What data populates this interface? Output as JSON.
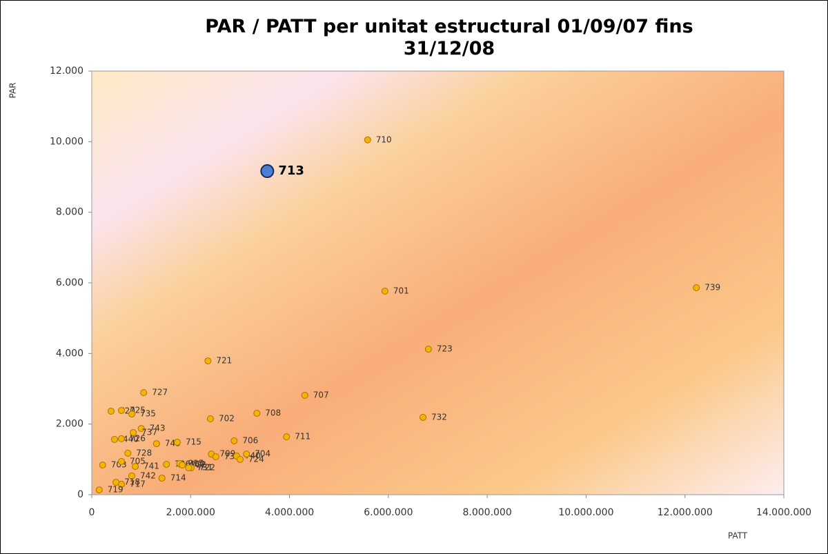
{
  "chart_data": {
    "type": "scatter",
    "title": "PAR / PATT per unitat estructural  01/09/07 fins 31/12/08",
    "x_label": "PATT",
    "y_label": "PAR",
    "xlim": [
      0,
      14000000
    ],
    "xticks": [
      0,
      {
        "value": 2000000,
        "label": "2.000.000"
      },
      {
        "value": 4000000,
        "label": "4.000.000"
      },
      {
        "value": 6000000,
        "label": "6.000.000"
      },
      {
        "value": 8000000,
        "label": "8.000.000"
      },
      {
        "value": 10000000,
        "label": "10.000.000"
      },
      {
        "value": 12000000,
        "label": "12.000.000"
      },
      {
        "value": 14000000,
        "label": "14.000.000"
      }
    ],
    "ylim": [
      0,
      12000
    ],
    "yticks": [
      0,
      {
        "value": 2000,
        "label": "2.000"
      },
      {
        "value": 4000,
        "label": "4.000"
      },
      {
        "value": 6000,
        "label": "6.000"
      },
      {
        "value": 8000,
        "label": "8.000"
      },
      {
        "value": 10000,
        "label": "10.000"
      },
      {
        "value": 12000,
        "label": "12.000"
      }
    ],
    "series": [
      {
        "color": "#f5b400",
        "labels": [
          "710",
          "701",
          "739",
          "723",
          "721",
          "727",
          "707",
          "732",
          "708",
          "702",
          "711",
          "720",
          "725",
          "735",
          "743",
          "440",
          "726",
          "737",
          "745",
          "728",
          "715",
          "736",
          "460",
          "915",
          "712",
          "722",
          "731",
          "706",
          "709",
          "734",
          "740",
          "704",
          "724",
          "714",
          "703",
          "705",
          "741",
          "742",
          "717",
          "718",
          "719"
        ],
        "x": [
          5580000,
          5930000,
          12230000,
          6810000,
          2350000,
          1050000,
          4310000,
          6700000,
          3340000,
          2400000,
          3940000,
          390000,
          600000,
          810000,
          1000000,
          460000,
          600000,
          840000,
          1310000,
          730000,
          1730000,
          1510000,
          1800000,
          1780000,
          1830000,
          2010000,
          1960000,
          2880000,
          2420000,
          2510000,
          2930000,
          3130000,
          3000000,
          1420000,
          220000,
          600000,
          880000,
          810000,
          600000,
          490000,
          150000
        ],
        "values": [
          10050,
          5765,
          5863,
          4123,
          3790,
          2890,
          2815,
          2190,
          2305,
          2150,
          1640,
          2365,
          2385,
          2285,
          1875,
          1565,
          1585,
          1760,
          1445,
          1175,
          1485,
          860,
          860,
          880,
          840,
          760,
          760,
          1525,
          1150,
          1075,
          1095,
          1150,
          1000,
          470,
          840,
          940,
          800,
          530,
          295,
          350,
          135
        ]
      },
      {
        "color": "#4a7fd6",
        "labels": [
          "713"
        ],
        "x": [
          3550000
        ],
        "values": [
          9165
        ]
      }
    ]
  }
}
